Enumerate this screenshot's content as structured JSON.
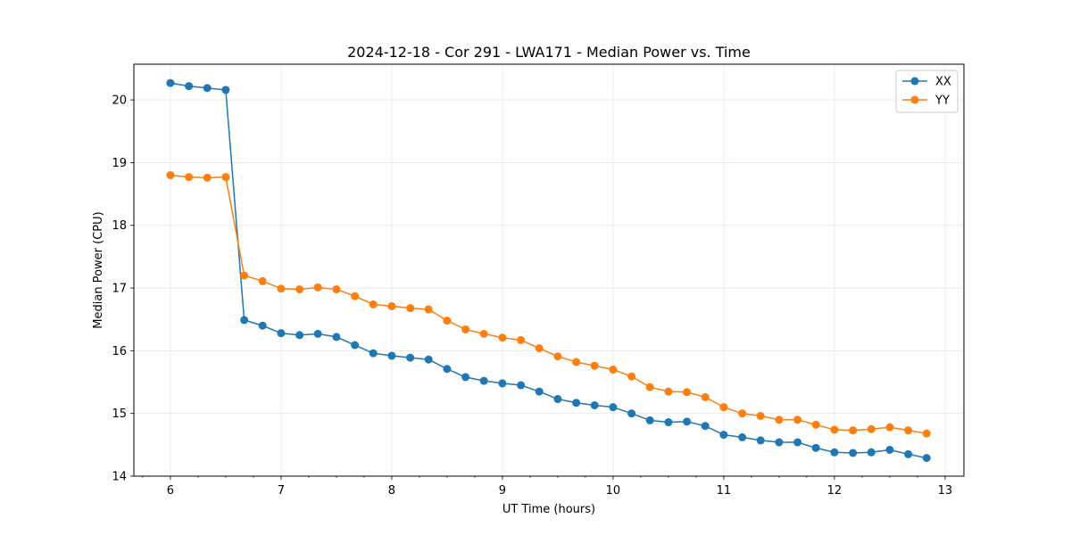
{
  "chart_data": {
    "type": "line",
    "title": "2024-12-18 - Cor 291 - LWA171 - Median Power vs. Time",
    "xlabel": "UT Time (hours)",
    "ylabel": "Median Power (CPU)",
    "xlim": [
      5.67,
      13.17
    ],
    "ylim": [
      14,
      20.57
    ],
    "xticks": [
      6,
      7,
      8,
      9,
      10,
      11,
      12,
      13
    ],
    "xticklabels": [
      "6",
      "7",
      "8",
      "9",
      "10",
      "11",
      "12",
      "13"
    ],
    "yticks": [
      14,
      15,
      16,
      17,
      18,
      19,
      20
    ],
    "yticklabels": [
      "14",
      "15",
      "16",
      "17",
      "18",
      "19",
      "20"
    ],
    "grid": true,
    "legend": "top-right",
    "x": [
      6.0,
      6.167,
      6.333,
      6.5,
      6.667,
      6.833,
      7.0,
      7.167,
      7.333,
      7.5,
      7.667,
      7.833,
      8.0,
      8.167,
      8.333,
      8.5,
      8.667,
      8.833,
      9.0,
      9.167,
      9.333,
      9.5,
      9.667,
      9.833,
      10.0,
      10.167,
      10.333,
      10.5,
      10.667,
      10.833,
      11.0,
      11.167,
      11.333,
      11.5,
      11.667,
      11.833,
      12.0,
      12.167,
      12.333,
      12.5,
      12.667,
      12.833
    ],
    "series": [
      {
        "name": "XX",
        "color": "#1f77b4",
        "values": [
          20.27,
          20.22,
          20.19,
          20.16,
          16.49,
          16.4,
          16.28,
          16.25,
          16.27,
          16.22,
          16.09,
          15.96,
          15.92,
          15.89,
          15.86,
          15.71,
          15.58,
          15.52,
          15.48,
          15.45,
          15.35,
          15.23,
          15.17,
          15.13,
          15.1,
          15.0,
          14.89,
          14.86,
          14.87,
          14.8,
          14.66,
          14.62,
          14.57,
          14.54,
          14.54,
          14.45,
          14.38,
          14.37,
          14.38,
          14.42,
          14.35,
          14.29
        ]
      },
      {
        "name": "YY",
        "color": "#ff7f0e",
        "values": [
          18.8,
          18.77,
          18.76,
          18.77,
          17.2,
          17.11,
          16.99,
          16.98,
          17.01,
          16.98,
          16.87,
          16.74,
          16.71,
          16.68,
          16.66,
          16.48,
          16.34,
          16.27,
          16.21,
          16.17,
          16.04,
          15.91,
          15.82,
          15.76,
          15.7,
          15.59,
          15.42,
          15.35,
          15.34,
          15.26,
          15.1,
          15.0,
          14.96,
          14.9,
          14.9,
          14.82,
          14.74,
          14.73,
          14.75,
          14.78,
          14.73,
          14.68
        ]
      }
    ]
  }
}
